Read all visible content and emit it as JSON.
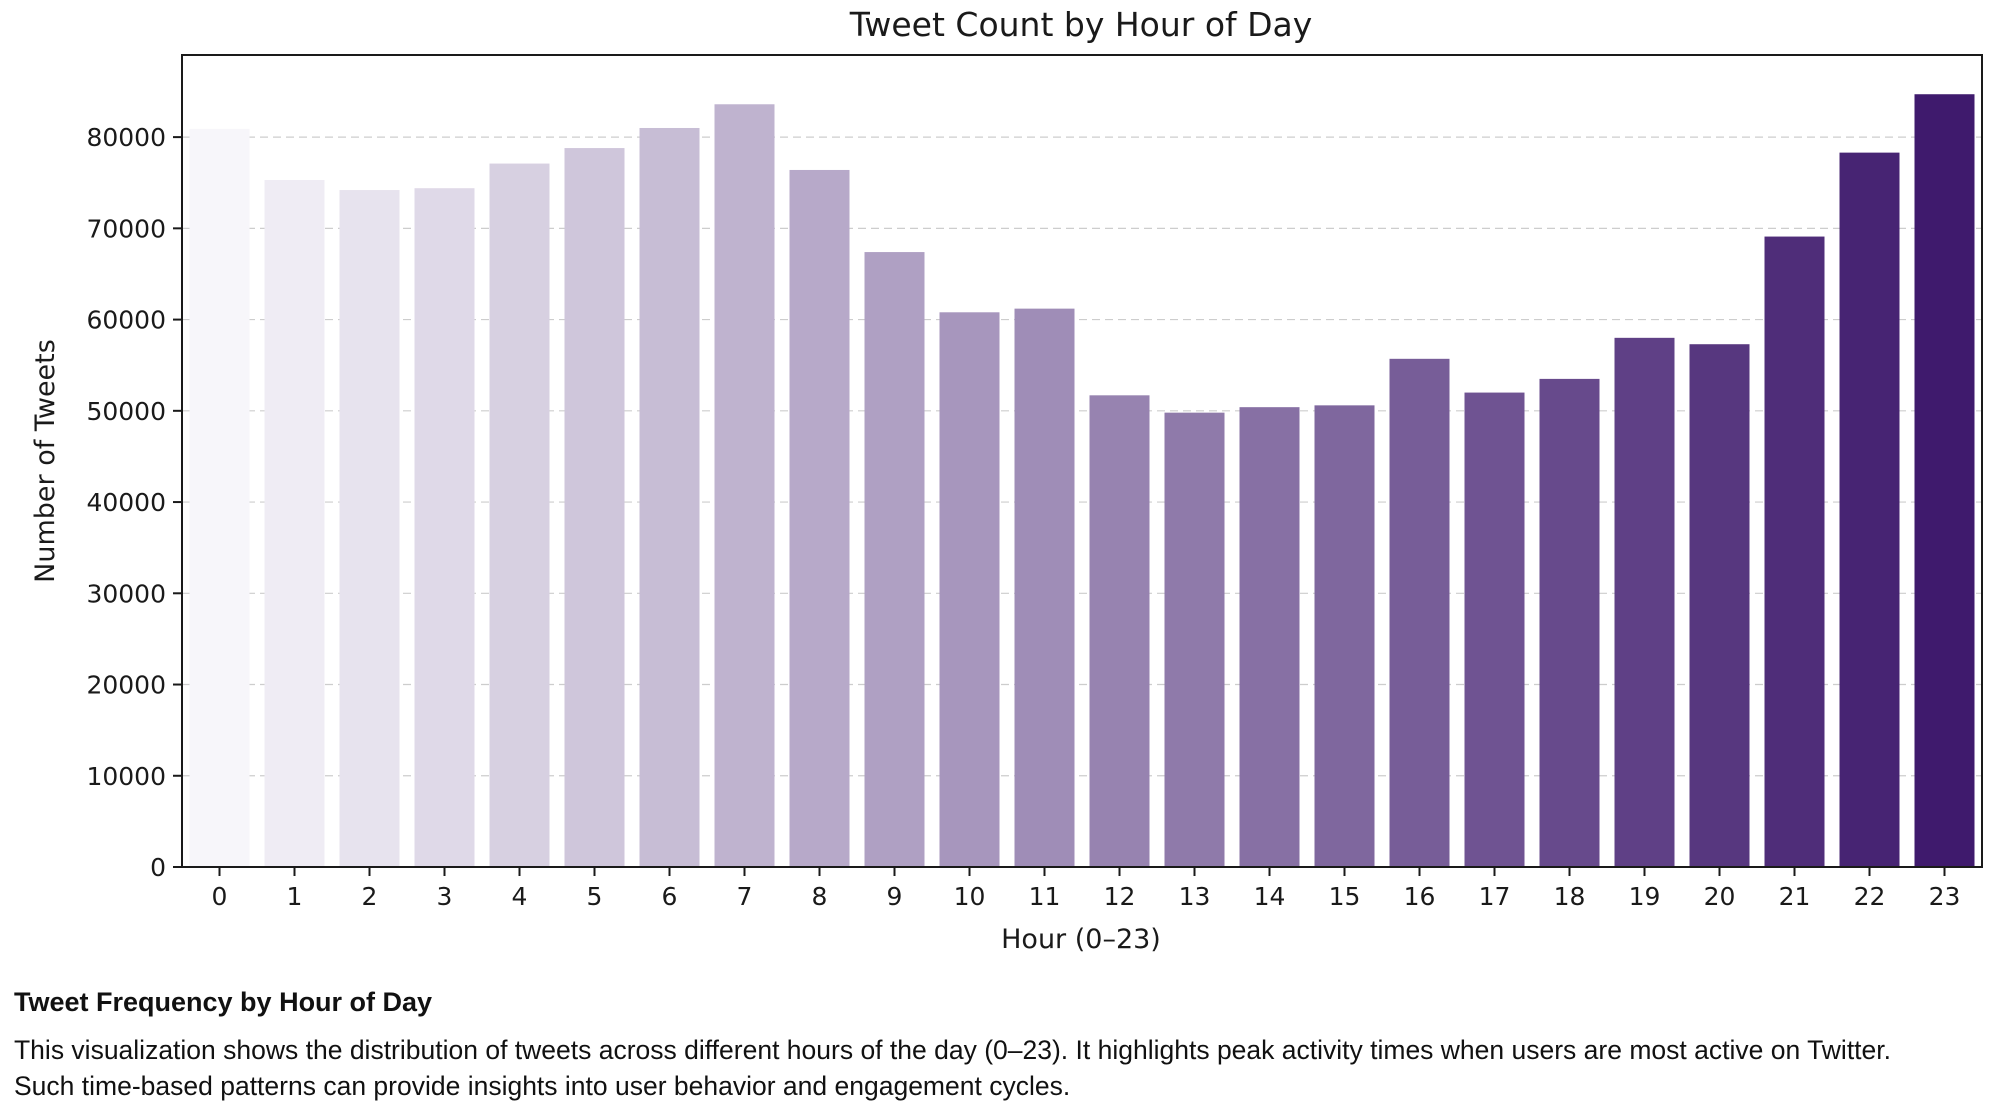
{
  "chart_data": {
    "type": "bar",
    "title": "Tweet Count by Hour of Day",
    "xlabel": "Hour (0–23)",
    "ylabel": "Number of Tweets",
    "categories": [
      "0",
      "1",
      "2",
      "3",
      "4",
      "5",
      "6",
      "7",
      "8",
      "9",
      "10",
      "11",
      "12",
      "13",
      "14",
      "15",
      "16",
      "17",
      "18",
      "19",
      "20",
      "21",
      "22",
      "23"
    ],
    "values": [
      80900,
      75300,
      74200,
      74400,
      77100,
      78800,
      81000,
      83600,
      76400,
      67400,
      60800,
      61200,
      51700,
      49800,
      50400,
      50600,
      55700,
      52000,
      53500,
      58000,
      57300,
      69100,
      78300,
      84700
    ],
    "ylim": [
      0,
      89000
    ],
    "yticks": [
      0,
      10000,
      20000,
      30000,
      40000,
      50000,
      60000,
      70000,
      80000
    ],
    "grid": "y-dashed",
    "colormap": "purples",
    "color_start": "#f7f6fa",
    "color_end": "#3f1a6d"
  },
  "caption": {
    "title": "Tweet Frequency by Hour of Day",
    "text": "This visualization shows the distribution of tweets across different hours of the day (0–23). It highlights peak activity times when users are most active on Twitter.\nSuch time-based patterns can provide insights into user behavior and engagement cycles."
  }
}
